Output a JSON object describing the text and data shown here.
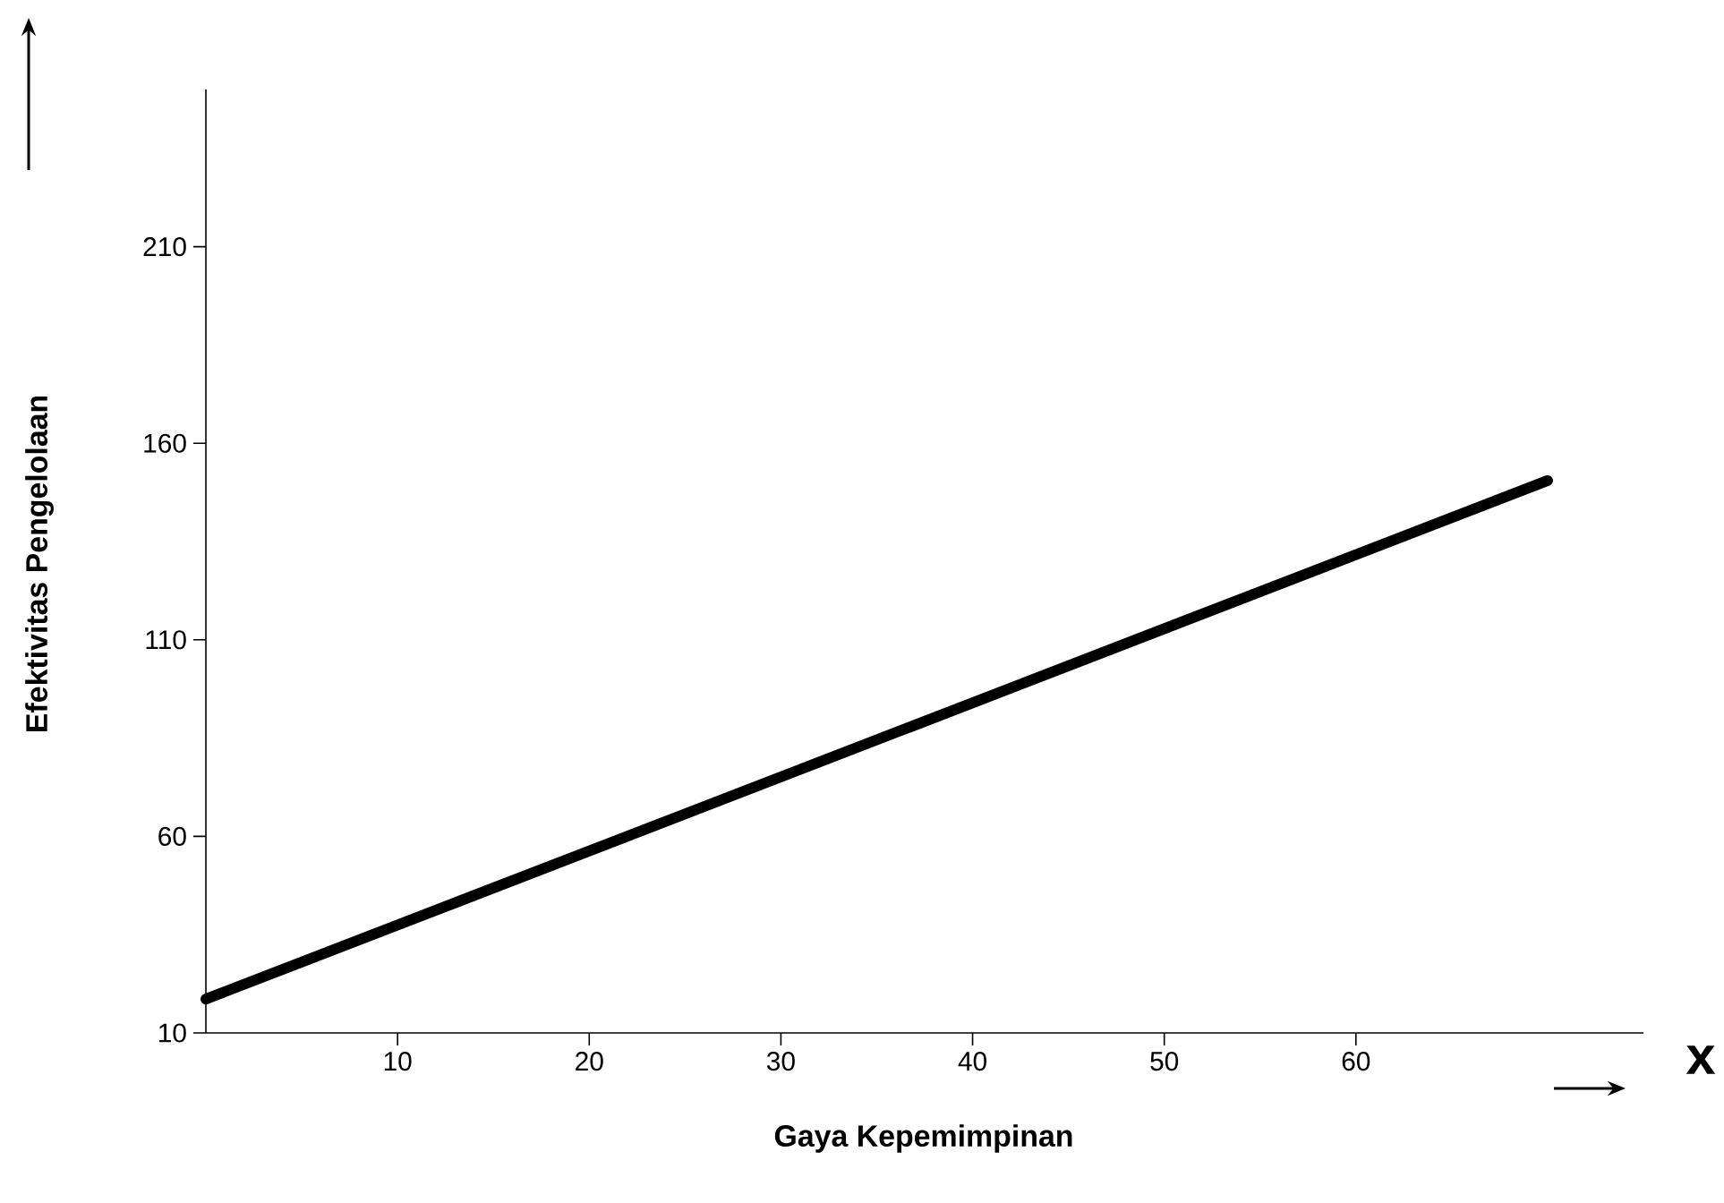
{
  "chart_data": {
    "type": "line",
    "xlabel": "Gaya Kepemimpinan",
    "ylabel": "Efektivitas Pengelolaan",
    "annotations": [
      "x"
    ],
    "series": [
      {
        "x": [
          0,
          70
        ],
        "values": [
          18.6,
          150.5
        ],
        "color": "#000000"
      }
    ],
    "xlim": [
      0,
      75
    ],
    "ylim": [
      10,
      250
    ],
    "xticks": [
      10,
      20,
      30,
      40,
      50,
      60
    ],
    "yticks": [
      10,
      60,
      110,
      160,
      210
    ],
    "grid": false,
    "marker": "none",
    "line_style": "solid"
  }
}
